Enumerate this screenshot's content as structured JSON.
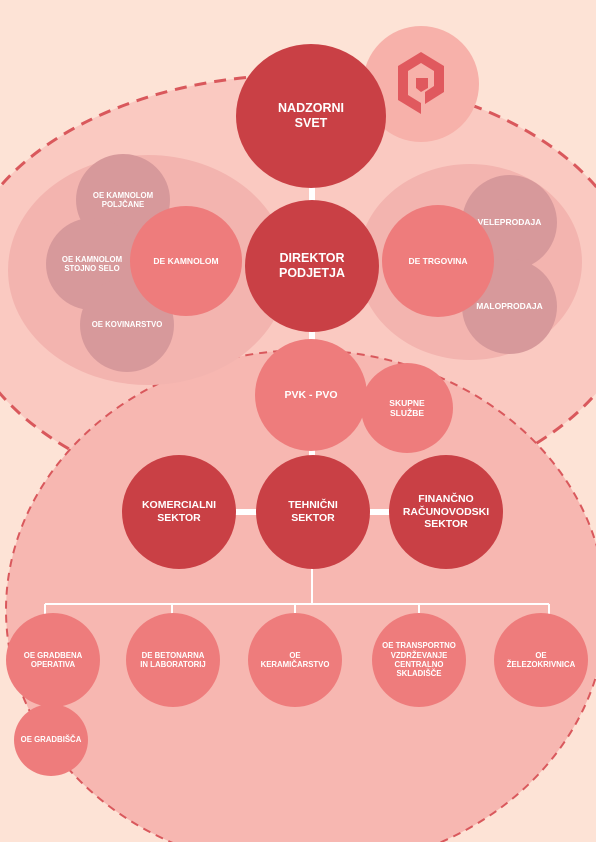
{
  "colors": {
    "background": "#fde3d6",
    "dark_red": "#c94045",
    "salmon": "#ee7c7c",
    "mauve": "#d7999b",
    "cluster": "#f4bfba",
    "dashed_border": "#d9585c",
    "connector": "#ffffff"
  },
  "logo": {
    "icon": "company-logo-icon"
  },
  "governance": {
    "supervisory_board": "NADZORNI\nSVET",
    "director": "DIREKTOR\nPODJETJA"
  },
  "quarry_unit": {
    "label": "DE KAMNOLOM",
    "subunits": [
      "OE KAMNOLOM\nPOLJČANE",
      "OE KAMNOLOM\nSTOJNO SELO",
      "OE KOVINARSTVO"
    ]
  },
  "trade_unit": {
    "label": "DE TRGOVINA",
    "subunits": [
      "VELEPRODAJA",
      "MALOPRODAJA"
    ]
  },
  "pvk_pvo": "PVK - PVO",
  "common_services": "SKUPNE\nSLUŽBE",
  "sectors": {
    "commercial": "KOMERCIALNI\nSEKTOR",
    "technical": "TEHNIČNI\nSEKTOR",
    "financial": "FINANČNO\nRAČUNOVODSKI\nSEKTOR"
  },
  "technical_units": [
    "OE GRADBENA\nOPERATIVA",
    "DE BETONARNA\nIN LABORATORIJ",
    "OE\nKERAMIČARSTVO",
    "OE TRANSPORTNO\nVZDRŽEVANJE\nCENTRALNO\nSKLADIŠČE",
    "OE\nŽELEZOKRIVNICA"
  ],
  "construction_sites": "OE GRADBIŠČA"
}
